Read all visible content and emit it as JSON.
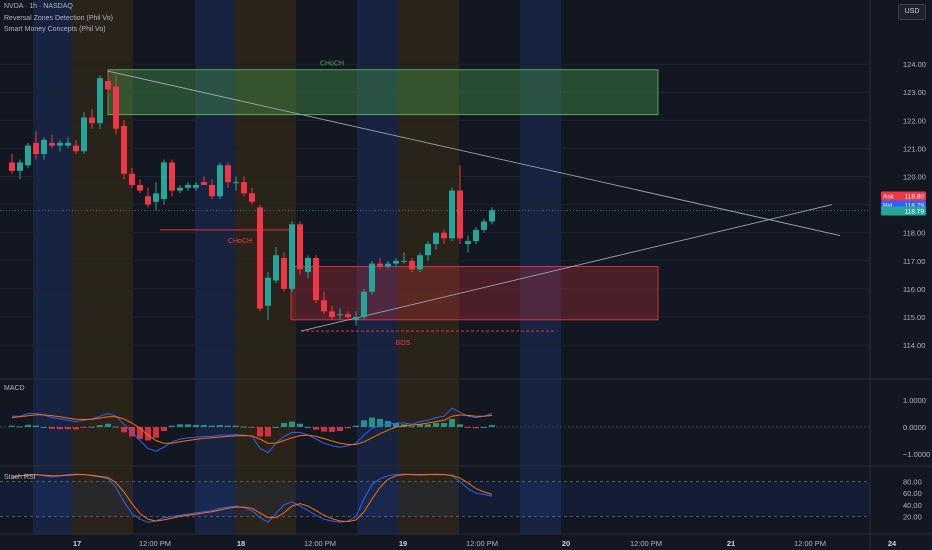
{
  "header": {
    "symbol_line": "NVDA · 1h · NASDAQ",
    "indicator_1": "Reversal Zones Detection (Phil Vo)",
    "indicator_2": "Smart Money Concepts (Phil Vo)",
    "currency_button": "USD"
  },
  "panes": {
    "macd_label": "MACD",
    "stoch_label": "Stoch RSI"
  },
  "colors": {
    "background": "#131722",
    "up": "#26a69a",
    "down": "#f23645",
    "grid": "#1e222d",
    "macd_line": "#2962ff",
    "signal_line": "#ff6d00",
    "choch_top": "#2e7d32",
    "choch_bottom": "#f23645",
    "trendline": "#a0a4ad",
    "stripe_blue": "#1a2647",
    "stripe_orange": "#2e2619"
  },
  "chart_data": [
    {
      "type": "candlestick",
      "title": "NVDA · 1h · NASDAQ",
      "ylim": [
        113.4,
        125
      ],
      "y_ticks": [
        "124.00",
        "123.00",
        "122.00",
        "121.00",
        "120.00",
        "119.00",
        "118.00",
        "117.00",
        "116.00",
        "115.00",
        "114.00"
      ],
      "x_ticks": [
        "17",
        "12:00 PM",
        "18",
        "12:00 PM",
        "19",
        "12:00 PM",
        "20",
        "12:00 PM",
        "21",
        "12:00 PM",
        "24"
      ],
      "ohlc": [
        [
          120.5,
          120.8,
          120.1,
          120.2
        ],
        [
          120.2,
          120.6,
          119.9,
          120.5
        ],
        [
          120.4,
          121.2,
          120.3,
          121.1
        ],
        [
          121.2,
          121.6,
          120.6,
          120.8
        ],
        [
          120.8,
          121.4,
          120.6,
          121.3
        ],
        [
          121.2,
          121.5,
          121.0,
          121.1
        ],
        [
          121.1,
          121.3,
          120.9,
          121.2
        ],
        [
          121.1,
          121.4,
          121.0,
          121.2
        ],
        [
          121.1,
          121.3,
          120.8,
          120.9
        ],
        [
          120.9,
          122.3,
          120.8,
          122.1
        ],
        [
          122.1,
          122.4,
          121.7,
          121.9
        ],
        [
          121.9,
          123.6,
          121.7,
          123.5
        ],
        [
          123.4,
          123.7,
          122.9,
          123.1
        ],
        [
          123.2,
          123.6,
          121.5,
          121.7
        ],
        [
          121.8,
          122.0,
          119.9,
          120.1
        ],
        [
          120.1,
          120.3,
          119.6,
          119.7
        ],
        [
          119.7,
          119.9,
          119.4,
          119.5
        ],
        [
          119.3,
          119.6,
          118.9,
          119.0
        ],
        [
          119.1,
          119.8,
          118.8,
          119.4
        ],
        [
          119.2,
          120.6,
          119.0,
          120.5
        ],
        [
          120.5,
          120.6,
          119.3,
          119.5
        ],
        [
          119.5,
          119.7,
          119.4,
          119.6
        ],
        [
          119.6,
          119.8,
          119.5,
          119.7
        ],
        [
          119.6,
          119.8,
          119.5,
          119.7
        ],
        [
          119.8,
          120.0,
          119.7,
          119.7
        ],
        [
          119.7,
          119.9,
          119.2,
          119.3
        ],
        [
          119.3,
          120.5,
          119.2,
          120.4
        ],
        [
          120.4,
          120.5,
          119.6,
          119.8
        ],
        [
          119.8,
          120.0,
          119.5,
          119.8
        ],
        [
          119.8,
          120.0,
          119.3,
          119.4
        ],
        [
          119.4,
          119.6,
          119.0,
          119.1
        ],
        [
          118.9,
          119.0,
          115.2,
          115.3
        ],
        [
          115.4,
          116.6,
          114.9,
          116.4
        ],
        [
          116.3,
          117.5,
          116.2,
          117.2
        ],
        [
          117.1,
          117.3,
          115.9,
          116.0
        ],
        [
          116.0,
          118.4,
          115.9,
          118.3
        ],
        [
          118.3,
          118.4,
          116.5,
          116.7
        ],
        [
          116.6,
          117.2,
          116.4,
          117.1
        ],
        [
          117.1,
          117.2,
          115.5,
          115.6
        ],
        [
          115.6,
          115.9,
          115.1,
          115.2
        ],
        [
          115.2,
          115.4,
          114.9,
          115.0
        ],
        [
          115.1,
          115.3,
          114.9,
          115.1
        ],
        [
          115.1,
          115.2,
          114.9,
          115.0
        ],
        [
          114.9,
          115.2,
          114.7,
          115.0
        ],
        [
          115.0,
          116.0,
          114.9,
          115.9
        ],
        [
          115.9,
          117.0,
          115.8,
          116.9
        ],
        [
          116.9,
          117.1,
          116.7,
          116.8
        ],
        [
          116.8,
          117.0,
          116.7,
          116.9
        ],
        [
          116.9,
          117.1,
          116.8,
          117.0
        ],
        [
          117.0,
          117.3,
          116.9,
          117.0
        ],
        [
          117.0,
          117.1,
          116.6,
          116.7
        ],
        [
          116.7,
          117.3,
          116.6,
          117.2
        ],
        [
          117.2,
          117.7,
          117.0,
          117.6
        ],
        [
          117.6,
          118.0,
          117.4,
          118.0
        ],
        [
          118.0,
          118.1,
          117.6,
          117.8
        ],
        [
          117.8,
          119.6,
          117.7,
          119.5
        ],
        [
          119.5,
          120.4,
          117.6,
          117.8
        ],
        [
          117.6,
          117.9,
          117.3,
          117.7
        ],
        [
          117.7,
          118.2,
          117.6,
          118.1
        ],
        [
          118.1,
          118.5,
          118.0,
          118.4
        ],
        [
          118.4,
          118.9,
          118.3,
          118.8
        ]
      ],
      "price_labels": {
        "ask_label": "Ask",
        "ask_value": "118.80",
        "bid_label": "Bid",
        "bid_value": "118.79",
        "last_value": "118.79"
      },
      "annotations": {
        "top_zone_label": "CHoCH",
        "top_zone_range": [
          122.2,
          123.8
        ],
        "bottom_zone_label": "CHoCH",
        "demand_zone_range": [
          114.9,
          116.8
        ],
        "bos_label": "BOS",
        "bos_level": 114.5,
        "choch_level": 118.1
      }
    },
    {
      "type": "line",
      "title": "MACD",
      "ylim": [
        -1.3,
        1.3
      ],
      "y_ticks": [
        "1.0000",
        "0.0000",
        "−1.0000"
      ],
      "series": [
        {
          "name": "MACD",
          "values": [
            0.4,
            0.4,
            0.5,
            0.5,
            0.45,
            0.35,
            0.3,
            0.25,
            0.2,
            0.25,
            0.3,
            0.4,
            0.5,
            0.4,
            0.1,
            -0.2,
            -0.5,
            -0.8,
            -0.9,
            -0.75,
            -0.55,
            -0.45,
            -0.4,
            -0.38,
            -0.35,
            -0.35,
            -0.3,
            -0.3,
            -0.28,
            -0.3,
            -0.35,
            -0.8,
            -0.95,
            -0.6,
            -0.35,
            -0.2,
            -0.2,
            -0.3,
            -0.45,
            -0.6,
            -0.7,
            -0.75,
            -0.7,
            -0.6,
            -0.3,
            -0.05,
            0.05,
            0.1,
            0.15,
            0.15,
            0.1,
            0.2,
            0.25,
            0.35,
            0.4,
            0.7,
            0.55,
            0.4,
            0.35,
            0.4,
            0.5
          ]
        },
        {
          "name": "Signal",
          "values": [
            0.35,
            0.38,
            0.42,
            0.45,
            0.45,
            0.42,
            0.38,
            0.33,
            0.29,
            0.28,
            0.29,
            0.33,
            0.38,
            0.38,
            0.3,
            0.15,
            -0.05,
            -0.3,
            -0.5,
            -0.6,
            -0.6,
            -0.55,
            -0.5,
            -0.46,
            -0.42,
            -0.4,
            -0.37,
            -0.35,
            -0.33,
            -0.32,
            -0.33,
            -0.45,
            -0.6,
            -0.6,
            -0.5,
            -0.4,
            -0.32,
            -0.3,
            -0.35,
            -0.43,
            -0.52,
            -0.6,
            -0.65,
            -0.65,
            -0.55,
            -0.4,
            -0.25,
            -0.12,
            0.0,
            0.05,
            0.07,
            0.1,
            0.15,
            0.2,
            0.25,
            0.4,
            0.45,
            0.43,
            0.4,
            0.4,
            0.43
          ]
        }
      ]
    },
    {
      "type": "line",
      "title": "Stoch RSI",
      "ylim": [
        0,
        100
      ],
      "y_ticks": [
        "80.00",
        "60.00",
        "40.00",
        "20.00"
      ],
      "series": [
        {
          "name": "K",
          "values": [
            85,
            90,
            92,
            92,
            90,
            88,
            90,
            92,
            93,
            92,
            90,
            88,
            85,
            70,
            45,
            25,
            15,
            10,
            12,
            18,
            20,
            22,
            24,
            26,
            28,
            30,
            34,
            36,
            38,
            35,
            30,
            18,
            10,
            25,
            40,
            45,
            38,
            30,
            22,
            15,
            12,
            10,
            12,
            20,
            50,
            75,
            85,
            90,
            92,
            93,
            92,
            91,
            92,
            93,
            92,
            90,
            80,
            68,
            60,
            58,
            55
          ]
        },
        {
          "name": "D",
          "values": [
            88,
            90,
            91,
            92,
            91,
            90,
            90,
            91,
            92,
            92,
            91,
            89,
            87,
            78,
            62,
            42,
            25,
            15,
            12,
            14,
            17,
            20,
            22,
            24,
            26,
            28,
            31,
            34,
            36,
            36,
            34,
            26,
            18,
            18,
            26,
            38,
            42,
            38,
            30,
            22,
            16,
            12,
            11,
            14,
            28,
            50,
            70,
            84,
            90,
            92,
            92,
            92,
            92,
            92,
            92,
            91,
            86,
            78,
            68,
            62,
            58
          ]
        }
      ]
    }
  ]
}
